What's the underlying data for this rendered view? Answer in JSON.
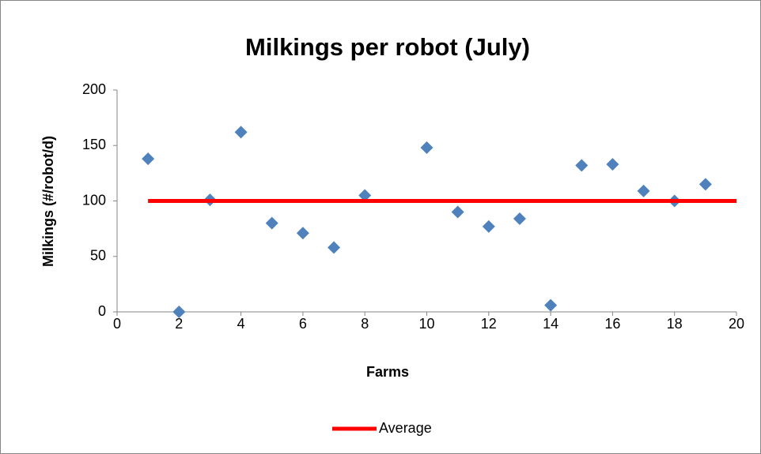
{
  "chart_data": {
    "type": "scatter",
    "title": "Milkings per robot (July)",
    "x_label": "Farms",
    "y_label": "Milkings (#/robot/d)",
    "xlim": [
      0,
      20
    ],
    "xticks": [
      0,
      2,
      4,
      6,
      8,
      10,
      12,
      14,
      16,
      18,
      20
    ],
    "ylim": [
      0,
      200
    ],
    "yticks": [
      0,
      50,
      100,
      150,
      200
    ],
    "grid": false,
    "legend": "bottom",
    "series": [
      {
        "type": "scatter",
        "color": "#4f81bd",
        "marker": "diamond",
        "x": [
          1,
          2,
          3,
          4,
          5,
          6,
          7,
          8,
          10,
          11,
          12,
          13,
          14,
          15,
          16,
          17,
          18,
          19
        ],
        "values": [
          138,
          0,
          101,
          162,
          80,
          71,
          58,
          105,
          148,
          90,
          77,
          84,
          6,
          132,
          133,
          109,
          100,
          115
        ]
      },
      {
        "type": "line",
        "name": "Average",
        "color": "#ff0000",
        "x": [
          1,
          20
        ],
        "values": [
          100,
          100
        ]
      }
    ]
  }
}
